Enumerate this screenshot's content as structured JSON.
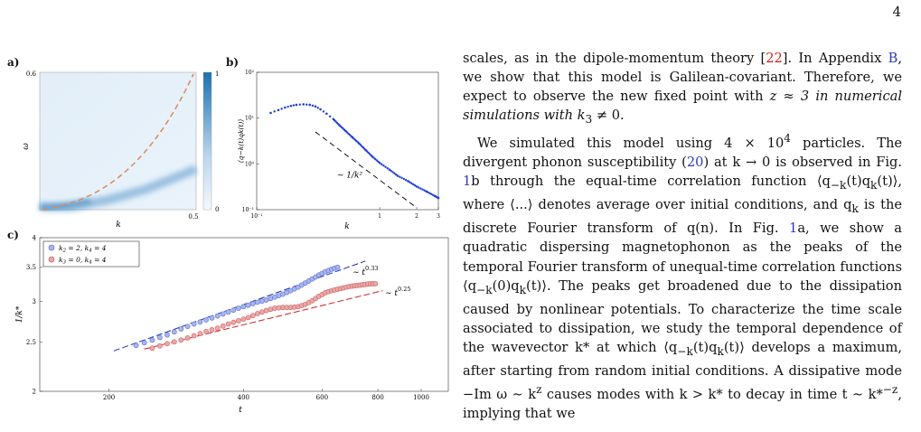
{
  "page_number": "4",
  "panels": {
    "a": "a)",
    "b": "b)",
    "c": "c)"
  },
  "chart_data": [
    {
      "type": "heatmap",
      "panel": "a",
      "xlabel": "k",
      "ylabel": "ω",
      "x_ticks": [
        "0.5"
      ],
      "y_ticks": [
        "0.6"
      ],
      "xlim": [
        0,
        0.5
      ],
      "ylim": [
        0,
        0.6
      ],
      "colorbar_ticks": [
        "1",
        "0"
      ],
      "colorbar_range": [
        0,
        1
      ],
      "overlay": {
        "type": "dashed-line",
        "shape": "quadratic",
        "color": "#d98a5a",
        "k": [
          0.02,
          0.1,
          0.2,
          0.3,
          0.4,
          0.5
        ],
        "omega": [
          0.0,
          0.024,
          0.096,
          0.216,
          0.384,
          0.6
        ]
      }
    },
    {
      "type": "scatter",
      "panel": "b",
      "xscale": "log",
      "yscale": "log",
      "xlabel": "k",
      "ylabel": "⟨q−k(t)qk(t)⟩",
      "xlim": [
        0.1,
        3
      ],
      "ylim": [
        0.1,
        100
      ],
      "x_ticks": [
        "10⁻¹",
        "1",
        "2",
        "3"
      ],
      "y_ticks": [
        "10²",
        "10¹",
        "10⁰",
        "10⁻¹"
      ],
      "series_color": "#1f3fd6",
      "x": [
        0.13,
        0.15,
        0.17,
        0.19,
        0.21,
        0.24,
        0.27,
        0.3,
        0.33,
        0.37,
        0.42,
        0.47,
        0.53,
        0.6,
        0.68,
        0.77,
        0.87,
        1.0,
        1.2,
        1.4,
        1.7,
        2.0,
        2.4,
        2.8,
        3.0
      ],
      "y": [
        13,
        15,
        17,
        18.5,
        19.5,
        20,
        19.5,
        18,
        15.5,
        12.5,
        9.5,
        7.0,
        5.2,
        3.8,
        2.8,
        2.0,
        1.45,
        1.05,
        0.75,
        0.55,
        0.42,
        0.32,
        0.25,
        0.2,
        0.18
      ],
      "guide": {
        "label": "∼ 1/k²",
        "k": [
          0.3,
          2.0
        ],
        "y": [
          5.0,
          0.11
        ]
      }
    },
    {
      "type": "scatter",
      "panel": "c",
      "xscale": "log",
      "yscale": "log",
      "xlabel": "t",
      "ylabel": "1/k*",
      "xlim": [
        140,
        1150
      ],
      "ylim": [
        2,
        4
      ],
      "x_ticks": [
        "200",
        "400",
        "600",
        "800",
        "1000"
      ],
      "y_ticks": [
        "4",
        "3.5",
        "3",
        "2.5",
        "2"
      ],
      "legend_position": "top-left",
      "series": [
        {
          "name": "k3 = 2, k4 = 4",
          "color": "#5b6fd8",
          "t": [
            230,
            250,
            270,
            290,
            310,
            330,
            350,
            370,
            390,
            410,
            430,
            450,
            470,
            490,
            510,
            530,
            550,
            570,
            590,
            610,
            630,
            650
          ],
          "y": [
            2.46,
            2.52,
            2.58,
            2.65,
            2.71,
            2.76,
            2.81,
            2.86,
            2.91,
            2.95,
            2.99,
            3.02,
            3.06,
            3.1,
            3.15,
            3.2,
            3.26,
            3.32,
            3.38,
            3.43,
            3.47,
            3.5
          ]
        },
        {
          "name": "k3 = 0, k4 = 4",
          "color": "#d16060",
          "t": [
            250,
            270,
            290,
            310,
            330,
            350,
            370,
            390,
            410,
            430,
            450,
            470,
            490,
            510,
            530,
            550,
            570,
            590,
            610,
            630,
            650,
            670,
            690,
            710,
            730,
            750,
            770,
            790
          ],
          "y": [
            2.43,
            2.48,
            2.52,
            2.57,
            2.62,
            2.66,
            2.71,
            2.75,
            2.79,
            2.84,
            2.88,
            2.91,
            2.92,
            2.92,
            2.93,
            2.96,
            3.01,
            3.07,
            3.12,
            3.15,
            3.17,
            3.19,
            3.21,
            3.22,
            3.23,
            3.24,
            3.25,
            3.25
          ]
        }
      ],
      "fits": [
        {
          "label": "∼ t",
          "exponent": "0.33",
          "color": "#1a2fb8",
          "t": [
            205,
            750
          ],
          "y": [
            2.4,
            3.6
          ]
        },
        {
          "label": "∼ t",
          "exponent": "0.25",
          "color": "#d02020",
          "t": [
            240,
            820
          ],
          "y": [
            2.42,
            3.15
          ]
        }
      ],
      "legend": [
        {
          "k3": "2",
          "k4": "4"
        },
        {
          "k3": "0",
          "k4": "4"
        }
      ]
    }
  ],
  "text": {
    "p1": {
      "a": "scales, as in the dipole-momentum theory [",
      "ref1": "22",
      "b": "]. In Appendix ",
      "appB": "B",
      "c": ", we show that this model is Galilean-covariant. Therefore, we expect to observe the new fixed point with ",
      "d": "z ≈ 3 in numerical simulations with k",
      "d_sub": "3",
      "e": " ≠ 0."
    },
    "p2": {
      "a": "We simulated this model using 4 × 10",
      "a_sup": "4",
      "b": " particles. The divergent phonon susceptibility (",
      "eq": "20",
      "c": ") at k → 0 is observed in Fig. ",
      "fig1": "1",
      "d": "b through the equal-time correlation function ⟨q",
      "d_sub1": "−k",
      "d2": "(t)q",
      "d_sub2": "k",
      "d3": "(t)⟩, where ⟨...⟩ denotes average over initial conditions, and q",
      "d_sub3": "k",
      "e": " is the discrete Fourier transform of q(n). In Fig. ",
      "fig2": "1",
      "f": "a, we show a quadratic dispersing magnetophonon as the peaks of the temporal Fourier transform of unequal-time correlation functions ⟨q",
      "f_sub1": "−k",
      "f2": "(0)q",
      "f_sub2": "k",
      "f3": "(t)⟩. The peaks get broadened due to the dissipation caused by nonlinear potentials. To characterize the time scale associated to dissipation, we study the temporal dependence of the wavevector k* at which ⟨q",
      "g_sub1": "−k",
      "g2": "(t)q",
      "g_sub2": "k",
      "g3": "(t)⟩ develops a maximum, after starting from random initial conditions. A dissipative mode −Im ω ∼ k",
      "g_sup": "z",
      "h": " causes modes with k > k* to decay in time t ∼ k*",
      "h_sup": "−z",
      "i": ", implying that we"
    }
  }
}
